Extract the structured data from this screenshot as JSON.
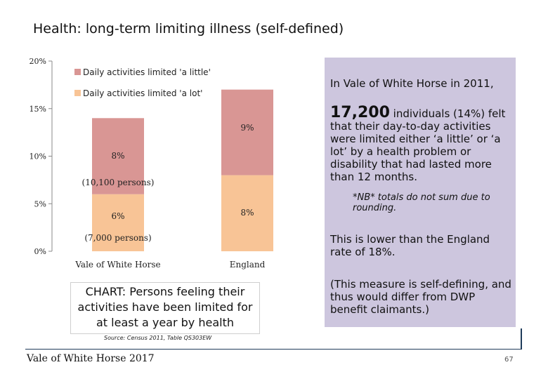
{
  "page": {
    "title": "Health: long-term limiting illness (self-defined)",
    "footer": "Vale of White Horse 2017",
    "page_number": "67"
  },
  "chart_data": {
    "type": "bar",
    "stacked": true,
    "categories": [
      "Vale of White Horse",
      "England"
    ],
    "series": [
      {
        "name": "Daily activities limited 'a lot'",
        "values": [
          6,
          8
        ],
        "labels": [
          "6%",
          "8%"
        ],
        "color": "#f8c496"
      },
      {
        "name": "Daily activities limited 'a little'",
        "values": [
          8,
          9
        ],
        "labels": [
          "8%",
          "9%"
        ],
        "color": "#d99694"
      }
    ],
    "annotations": [
      "(7,000 persons)",
      "(10,100 persons)"
    ],
    "y_ticks": [
      "0%",
      "5%",
      "10%",
      "15%",
      "20%"
    ],
    "ylim": [
      0,
      20
    ],
    "legend_position": "top-left",
    "grid": false
  },
  "caption": {
    "text": "CHART: Persons feeling their activities have been limited for at least a year by health",
    "source": "Source: Census 2011, Table QS303EW"
  },
  "info": {
    "intro": "In Vale of White Horse in 2011,",
    "big_number": "17,200",
    "big_text": " individuals (14%) felt that their day-to-day activities were limited either ‘a little’ or ‘a lot’ by a health problem or disability that had lasted more than 12 months.",
    "note": "*NB* totals do not sum due to rounding.",
    "lower": "This is lower than the England rate of 18%.",
    "measure": "(This measure is self-defining, and thus would differ from DWP benefit claimants.)"
  },
  "colors": {
    "panel": "#cdc6de",
    "axis": "#888888",
    "footer_line": "#1f3b5a"
  }
}
